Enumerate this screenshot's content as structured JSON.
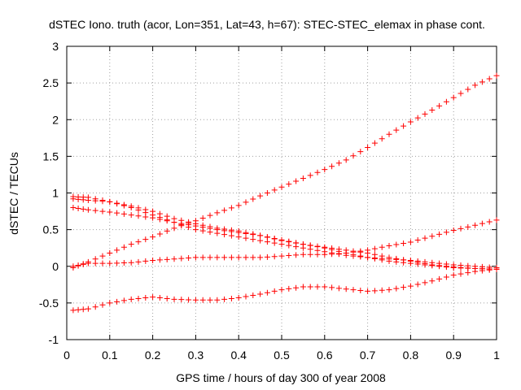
{
  "chart_data": {
    "type": "scatter",
    "title": "dSTEC Iono. truth (acor, Lon=351, Lat=43, h=67): STEC-STEC_elemax in phase cont.",
    "xlabel": "GPS time / hours of day 300 of year 2008",
    "ylabel": "dSTEC  / TECUs",
    "xlim": [
      0,
      1
    ],
    "ylim": [
      -1,
      3
    ],
    "xticks": [
      0,
      0.1,
      0.2,
      0.3,
      0.4,
      0.5,
      0.6,
      0.7,
      0.8,
      0.9,
      1
    ],
    "xtick_labels": [
      "0",
      "0.1",
      "0.2",
      "0.3",
      "0.4",
      "0.5",
      "0.6",
      "0.7",
      "0.8",
      "0.9",
      "1"
    ],
    "yticks": [
      -1,
      -0.5,
      0,
      0.5,
      1,
      1.5,
      2,
      2.5,
      3
    ],
    "ytick_labels": [
      "-1",
      "-0.5",
      "0",
      "0.5",
      "1",
      "1.5",
      "2",
      "2.5",
      "3"
    ],
    "grid": true,
    "marker": "plus",
    "color": "#ff0000",
    "series": [
      {
        "x": [
          0.015,
          0.05,
          0.1,
          0.15,
          0.2,
          0.25,
          0.3,
          0.35,
          0.4,
          0.45,
          0.5,
          0.55,
          0.6,
          0.65,
          0.7,
          0.75,
          0.8,
          0.85,
          0.9,
          0.95,
          1.0
        ],
        "y": [
          -0.02,
          0.06,
          0.18,
          0.3,
          0.4,
          0.52,
          0.62,
          0.73,
          0.83,
          0.96,
          1.08,
          1.2,
          1.32,
          1.45,
          1.62,
          1.8,
          1.97,
          2.13,
          2.3,
          2.47,
          2.6
        ]
      },
      {
        "x": [
          0.015,
          0.05,
          0.1,
          0.15,
          0.2,
          0.25,
          0.3,
          0.35,
          0.4,
          0.45,
          0.5,
          0.55,
          0.6,
          0.65,
          0.7,
          0.75,
          0.8,
          0.85,
          0.9,
          0.95,
          1.0
        ],
        "y": [
          0.95,
          0.94,
          0.88,
          0.8,
          0.7,
          0.6,
          0.5,
          0.45,
          0.4,
          0.35,
          0.3,
          0.25,
          0.2,
          0.15,
          0.12,
          0.1,
          0.08,
          0.05,
          0.02,
          0.0,
          -0.02
        ]
      },
      {
        "x": [
          0.015,
          0.05,
          0.1,
          0.15,
          0.2,
          0.25,
          0.3,
          0.35,
          0.4,
          0.45,
          0.5,
          0.55,
          0.6,
          0.65,
          0.7,
          0.75,
          0.8,
          0.85,
          0.9,
          0.95,
          1.0
        ],
        "y": [
          0.92,
          0.9,
          0.88,
          0.82,
          0.75,
          0.65,
          0.58,
          0.52,
          0.48,
          0.42,
          0.35,
          0.3,
          0.26,
          0.22,
          0.18,
          0.12,
          0.07,
          0.02,
          -0.01,
          -0.03,
          -0.04
        ]
      },
      {
        "x": [
          0.015,
          0.05,
          0.1,
          0.15,
          0.2,
          0.25,
          0.3,
          0.35,
          0.4,
          0.45,
          0.5,
          0.55,
          0.6,
          0.65,
          0.7,
          0.75,
          0.8,
          0.85,
          0.9,
          0.95,
          1.0
        ],
        "y": [
          0.8,
          0.77,
          0.74,
          0.7,
          0.66,
          0.6,
          0.55,
          0.5,
          0.46,
          0.42,
          0.36,
          0.3,
          0.25,
          0.18,
          0.12,
          0.07,
          0.04,
          0.01,
          -0.02,
          -0.03,
          -0.04
        ]
      },
      {
        "x": [
          0.015,
          0.05,
          0.1,
          0.15,
          0.2,
          0.25,
          0.3,
          0.35,
          0.4,
          0.45,
          0.5,
          0.55,
          0.6,
          0.65,
          0.7,
          0.75,
          0.8,
          0.85,
          0.9,
          0.95,
          1.0
        ],
        "y": [
          0.0,
          0.04,
          0.04,
          0.05,
          0.08,
          0.1,
          0.12,
          0.12,
          0.12,
          0.12,
          0.14,
          0.16,
          0.16,
          0.18,
          0.22,
          0.28,
          0.33,
          0.41,
          0.49,
          0.56,
          0.63
        ]
      },
      {
        "x": [
          0.015,
          0.05,
          0.1,
          0.15,
          0.2,
          0.25,
          0.3,
          0.35,
          0.4,
          0.45,
          0.5,
          0.55,
          0.6,
          0.65,
          0.7,
          0.75,
          0.8,
          0.85,
          0.9,
          0.95,
          1.0
        ],
        "y": [
          -0.6,
          -0.58,
          -0.5,
          -0.45,
          -0.42,
          -0.45,
          -0.46,
          -0.46,
          -0.43,
          -0.38,
          -0.32,
          -0.28,
          -0.28,
          -0.31,
          -0.34,
          -0.32,
          -0.27,
          -0.2,
          -0.12,
          -0.07,
          -0.04
        ]
      }
    ]
  }
}
